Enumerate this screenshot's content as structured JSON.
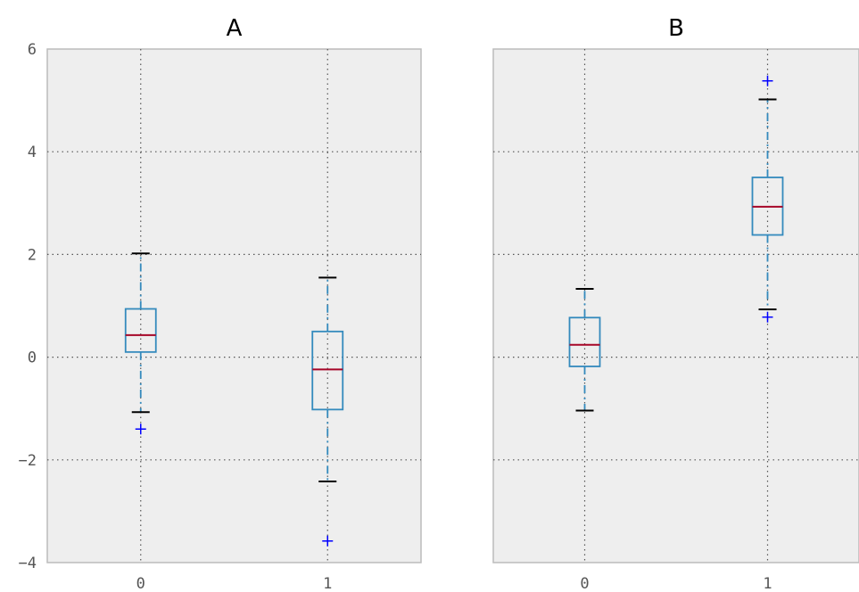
{
  "chart_data": {
    "type": "box",
    "shared_y": true,
    "ylim": [
      -4,
      6
    ],
    "yticks": [
      -4,
      -2,
      0,
      2,
      4,
      6
    ],
    "grid": true,
    "colors": {
      "axes_background": "#eeeeee",
      "axes_edge": "#bcbcbc",
      "box": "#348abd",
      "median": "#a60628",
      "cap": "#000000",
      "flier": "#0000ff",
      "grid": "#555555"
    },
    "panels": [
      {
        "title": "A",
        "categories": [
          "0",
          "1"
        ],
        "boxes": [
          {
            "label": "0",
            "whisker_low": -1.07,
            "q1": 0.1,
            "median": 0.43,
            "q3": 0.94,
            "whisker_high": 2.02,
            "fliers": [
              -1.4
            ]
          },
          {
            "label": "1",
            "whisker_low": -2.42,
            "q1": -1.02,
            "median": -0.24,
            "q3": 0.5,
            "whisker_high": 1.55,
            "fliers": [
              -3.58
            ]
          }
        ]
      },
      {
        "title": "B",
        "categories": [
          "0",
          "1"
        ],
        "boxes": [
          {
            "label": "0",
            "whisker_low": -1.04,
            "q1": -0.18,
            "median": 0.24,
            "q3": 0.77,
            "whisker_high": 1.33,
            "fliers": []
          },
          {
            "label": "1",
            "whisker_low": 0.93,
            "q1": 2.38,
            "median": 2.93,
            "q3": 3.5,
            "whisker_high": 5.02,
            "fliers": [
              0.78,
              5.38
            ]
          }
        ]
      }
    ]
  }
}
